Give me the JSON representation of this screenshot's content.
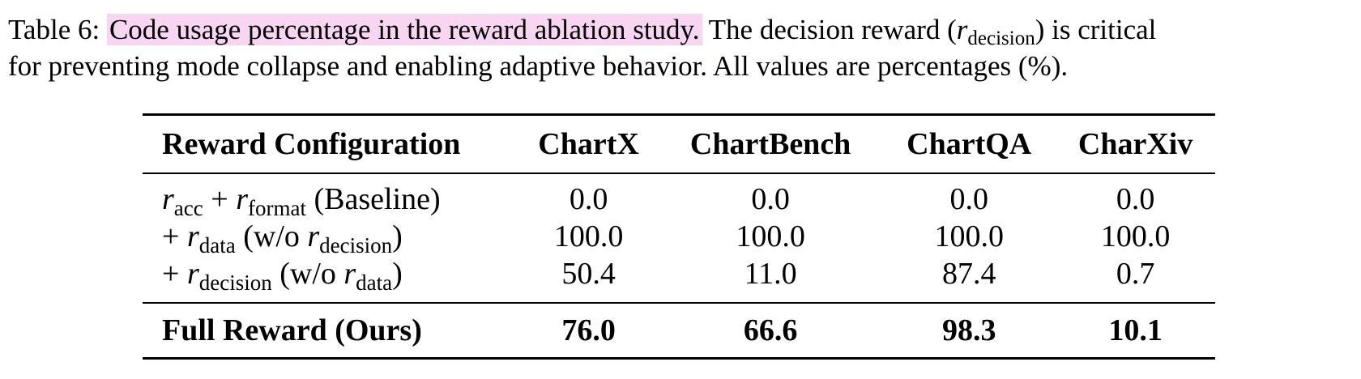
{
  "caption": {
    "label": "Table 6:",
    "highlighted": "Code usage percentage in the reward ablation study.",
    "text_before_math": "The decision reward (",
    "math_symbol": "r",
    "math_subscript": "decision",
    "text_after_math": ") is critical",
    "line2": "for preventing mode collapse and enabling adaptive behavior. All values are percentages (%).",
    "highlight_color": "#f8d6f2"
  },
  "table": {
    "headers": [
      "Reward Configuration",
      "ChartX",
      "ChartBench",
      "ChartQA",
      "CharXiv"
    ],
    "rows": [
      {
        "config": {
          "r1": "r",
          "s1": "acc",
          "mid": " + ",
          "r2": "r",
          "s2": "format",
          "tail": " (Baseline)"
        },
        "values": [
          "0.0",
          "0.0",
          "0.0",
          "0.0"
        ]
      },
      {
        "config": {
          "lead": "+ ",
          "r1": "r",
          "s1": "data",
          "mid": " (w/o ",
          "r2": "r",
          "s2": "decision",
          "tail": ")"
        },
        "values": [
          "100.0",
          "100.0",
          "100.0",
          "100.0"
        ]
      },
      {
        "config": {
          "lead": "+ ",
          "r1": "r",
          "s1": "decision",
          "mid": " (w/o ",
          "r2": "r",
          "s2": "data",
          "tail": ")"
        },
        "values": [
          "50.4",
          "11.0",
          "87.4",
          "0.7"
        ]
      }
    ],
    "full_row": {
      "label": "Full Reward (Ours)",
      "values": [
        "76.0",
        "66.6",
        "98.3",
        "10.1"
      ]
    }
  }
}
